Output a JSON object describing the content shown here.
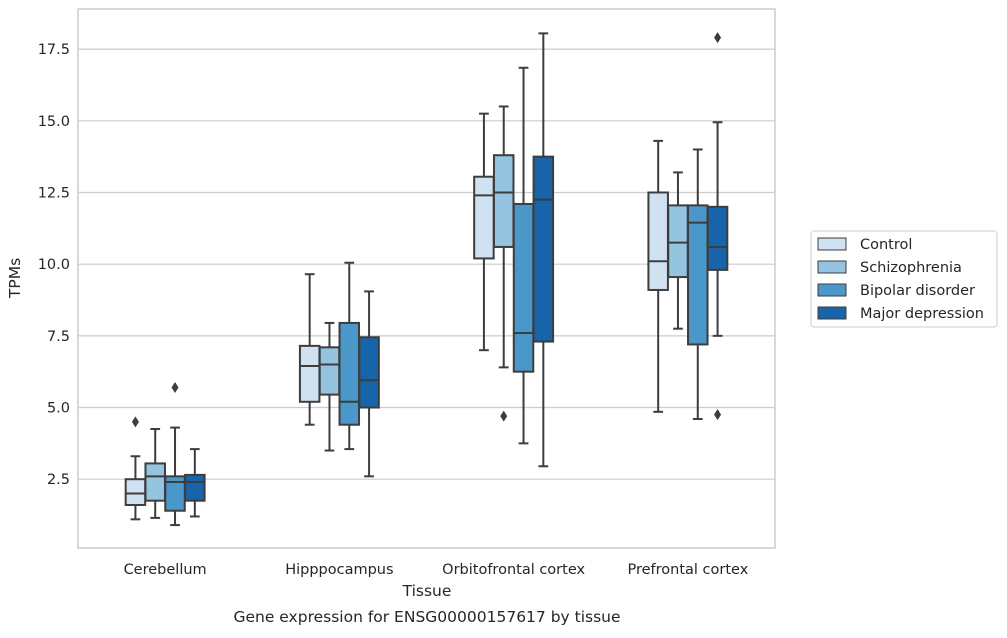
{
  "chart_data": {
    "type": "box",
    "title": "",
    "caption": "Gene expression for ENSG00000157617 by tissue",
    "xlabel": "Tissue",
    "ylabel": "TPMs",
    "categories": [
      "Cerebellum",
      "Hipppocampus",
      "Orbitofrontal cortex",
      "Prefrontal cortex"
    ],
    "ylim": [
      0.1,
      18.9
    ],
    "yticks": [
      2.5,
      5.0,
      7.5,
      10.0,
      12.5,
      15.0,
      17.5
    ],
    "ytick_labels": [
      "2.5",
      "5.0",
      "7.5",
      "10.0",
      "12.5",
      "15.0",
      "17.5"
    ],
    "grid": true,
    "legend_position": "right",
    "series": [
      {
        "name": "Control",
        "color": "#d0e1f2",
        "boxes": [
          {
            "whislo": 1.1,
            "q1": 1.6,
            "med": 2.0,
            "q3": 2.5,
            "whishi": 3.3,
            "fliers": [
              4.5
            ]
          },
          {
            "whislo": 4.4,
            "q1": 5.2,
            "med": 6.45,
            "q3": 7.15,
            "whishi": 9.65,
            "fliers": []
          },
          {
            "whislo": 7.0,
            "q1": 10.2,
            "med": 12.4,
            "q3": 13.05,
            "whishi": 15.25,
            "fliers": []
          },
          {
            "whislo": 4.85,
            "q1": 9.1,
            "med": 10.1,
            "q3": 12.5,
            "whishi": 14.3,
            "fliers": []
          }
        ]
      },
      {
        "name": "Schizophrenia",
        "color": "#94c4df",
        "boxes": [
          {
            "whislo": 1.15,
            "q1": 1.75,
            "med": 2.6,
            "q3": 3.05,
            "whishi": 4.25,
            "fliers": []
          },
          {
            "whislo": 3.5,
            "q1": 5.45,
            "med": 6.5,
            "q3": 7.1,
            "whishi": 7.95,
            "fliers": []
          },
          {
            "whislo": 6.4,
            "q1": 10.6,
            "med": 12.5,
            "q3": 13.8,
            "whishi": 15.5,
            "fliers": [
              4.7
            ]
          },
          {
            "whislo": 7.75,
            "q1": 9.55,
            "med": 10.75,
            "q3": 12.05,
            "whishi": 13.2,
            "fliers": []
          }
        ]
      },
      {
        "name": "Bipolar disorder",
        "color": "#4a98c9",
        "boxes": [
          {
            "whislo": 0.9,
            "q1": 1.4,
            "med": 2.4,
            "q3": 2.6,
            "whishi": 4.3,
            "fliers": [
              5.7
            ]
          },
          {
            "whislo": 3.55,
            "q1": 4.4,
            "med": 5.2,
            "q3": 7.95,
            "whishi": 10.05,
            "fliers": []
          },
          {
            "whislo": 3.75,
            "q1": 6.25,
            "med": 7.6,
            "q3": 12.1,
            "whishi": 16.85,
            "fliers": []
          },
          {
            "whislo": 4.6,
            "q1": 7.2,
            "med": 11.45,
            "q3": 12.05,
            "whishi": 14.0,
            "fliers": []
          }
        ]
      },
      {
        "name": "Major depression",
        "color": "#1764ab",
        "boxes": [
          {
            "whislo": 1.2,
            "q1": 1.75,
            "med": 2.4,
            "q3": 2.65,
            "whishi": 3.55,
            "fliers": []
          },
          {
            "whislo": 2.6,
            "q1": 5.0,
            "med": 5.95,
            "q3": 7.45,
            "whishi": 9.05,
            "fliers": []
          },
          {
            "whislo": 2.95,
            "q1": 7.3,
            "med": 12.25,
            "q3": 13.75,
            "whishi": 18.05,
            "fliers": []
          },
          {
            "whislo": 7.5,
            "q1": 9.8,
            "med": 10.6,
            "q3": 12.0,
            "whishi": 14.95,
            "fliers": [
              4.75,
              17.9
            ]
          }
        ]
      }
    ]
  }
}
